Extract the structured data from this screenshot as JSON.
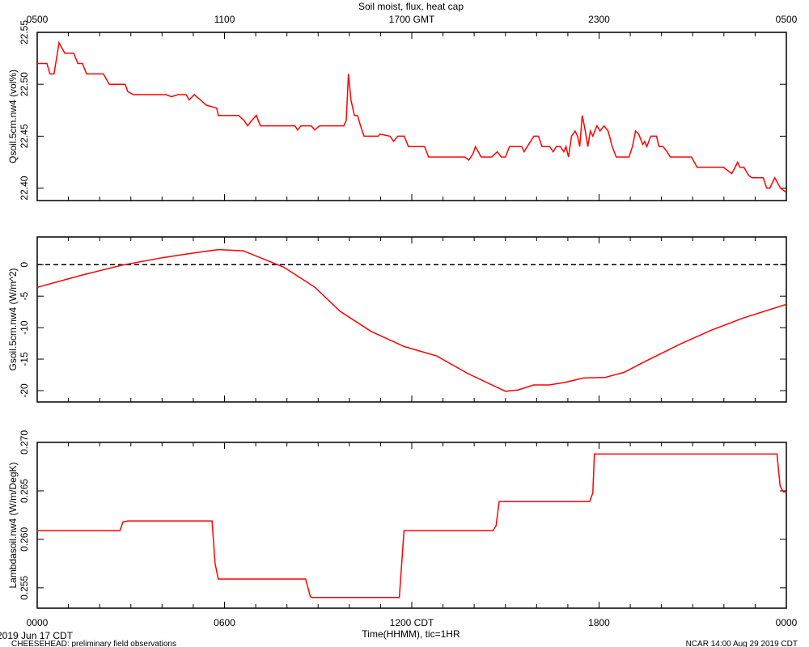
{
  "chart_data": [
    {
      "type": "line",
      "title": "Soil moist, flux, heat cap",
      "ylabel": "Qsoil.5cm.nw4 (vol%)",
      "color": "#ff0000",
      "xlim": [
        0,
        24
      ],
      "x2ticks": [
        {
          "value": 0,
          "label": "0500"
        },
        {
          "value": 6,
          "label": "1100"
        },
        {
          "value": 12,
          "label": "1700 GMT"
        },
        {
          "value": 18,
          "label": "2300"
        },
        {
          "value": 24,
          "label": "0500"
        }
      ],
      "ylim": [
        22.388,
        22.55
      ],
      "yticks": [
        {
          "value": 22.4,
          "label": "22.40"
        },
        {
          "value": 22.45,
          "label": "22.45"
        },
        {
          "value": 22.5,
          "label": "22.50"
        },
        22.55
      ],
      "x": [
        0,
        0.31,
        0.41,
        0.54,
        0.7,
        0.88,
        1.17,
        1.3,
        1.45,
        1.58,
        2.12,
        2.31,
        2.82,
        2.9,
        3.08,
        4.12,
        4.3,
        4.51,
        4.77,
        4.87,
        5.03,
        5.23,
        5.41,
        5.75,
        5.8,
        6.45,
        6.63,
        6.74,
        6.87,
        7.02,
        7.15,
        8.26,
        8.34,
        8.45,
        8.78,
        8.89,
        9.04,
        9.82,
        9.9,
        9.97,
        10.05,
        10.16,
        10.26,
        10.36,
        10.47,
        10.93,
        10.98,
        11.3,
        11.42,
        11.55,
        11.76,
        11.89,
        12.41,
        12.54,
        13.32,
        13.7,
        13.83,
        13.96,
        14.04,
        14.22,
        14.56,
        14.74,
        14.87,
        15.0,
        15.13,
        15.52,
        15.6,
        15.7,
        15.91,
        16.06,
        16.17,
        16.42,
        16.53,
        16.63,
        16.76,
        16.87,
        16.94,
        17.02,
        17.12,
        17.23,
        17.31,
        17.38,
        17.46,
        17.56,
        17.64,
        17.72,
        17.8,
        17.93,
        18.03,
        18.16,
        18.29,
        18.42,
        18.55,
        18.96,
        19.07,
        19.17,
        19.27,
        19.4,
        19.46,
        19.53,
        19.66,
        19.84,
        19.92,
        20.05,
        20.18,
        20.28,
        20.44,
        20.96,
        21.14,
        21.99,
        22.12,
        22.25,
        22.36,
        22.44,
        22.51,
        22.64,
        22.8,
        22.9,
        23.26,
        23.37,
        23.47,
        23.63,
        23.81,
        23.99
      ],
      "values": [
        22.52,
        22.52,
        22.51,
        22.51,
        22.54,
        22.53,
        22.53,
        22.52,
        22.52,
        22.51,
        22.51,
        22.5,
        22.5,
        22.493,
        22.49,
        22.49,
        22.488,
        22.49,
        22.49,
        22.485,
        22.49,
        22.485,
        22.48,
        22.477,
        22.47,
        22.47,
        22.465,
        22.46,
        22.465,
        22.47,
        22.46,
        22.46,
        22.456,
        22.46,
        22.46,
        22.456,
        22.46,
        22.46,
        22.465,
        22.51,
        22.485,
        22.47,
        22.47,
        22.46,
        22.45,
        22.45,
        22.452,
        22.45,
        22.445,
        22.45,
        22.45,
        22.44,
        22.44,
        22.43,
        22.43,
        22.43,
        22.427,
        22.433,
        22.44,
        22.43,
        22.43,
        22.435,
        22.43,
        22.43,
        22.44,
        22.44,
        22.435,
        22.44,
        22.45,
        22.45,
        22.44,
        22.44,
        22.435,
        22.44,
        22.44,
        22.435,
        22.44,
        22.43,
        22.45,
        22.455,
        22.45,
        22.44,
        22.47,
        22.455,
        22.44,
        22.455,
        22.45,
        22.46,
        22.455,
        22.46,
        22.455,
        22.44,
        22.43,
        22.43,
        22.44,
        22.455,
        22.452,
        22.442,
        22.445,
        22.44,
        22.45,
        22.45,
        22.44,
        22.44,
        22.435,
        22.43,
        22.43,
        22.43,
        22.42,
        22.42,
        22.417,
        22.414,
        22.42,
        22.425,
        22.42,
        22.42,
        22.412,
        22.41,
        22.41,
        22.4,
        22.4,
        22.41,
        22.4,
        22.396
      ]
    },
    {
      "type": "line",
      "ylabel": "Gsoil.5cm.nw4 (W/m^2)",
      "color": "#ff0000",
      "reference_line": 0,
      "xlim": [
        0,
        24
      ],
      "ylim": [
        -21.8,
        4.4
      ],
      "yticks": [
        -20,
        -15,
        -10,
        -5,
        0
      ],
      "x": [
        0,
        1.4,
        2.7,
        4.0,
        4.8,
        5.8,
        6.6,
        7.9,
        8.9,
        9.7,
        10.7,
        11.76,
        12.8,
        13.8,
        15.0,
        15.4,
        15.9,
        16.4,
        16.9,
        17.5,
        18.2,
        18.8,
        19.5,
        20.6,
        21.6,
        22.6,
        24
      ],
      "values": [
        -3.6,
        -1.7,
        -0.1,
        1.1,
        1.7,
        2.4,
        2.2,
        -0.4,
        -3.6,
        -7.4,
        -10.6,
        -13.0,
        -14.5,
        -17.3,
        -20.1,
        -19.9,
        -19.1,
        -19.1,
        -18.7,
        -18.0,
        -17.9,
        -17.1,
        -15.3,
        -12.6,
        -10.4,
        -8.5,
        -6.3
      ]
    },
    {
      "type": "line",
      "ylabel": "Lambdasoil.nw4 (W/m/DegK)",
      "color": "#ff0000",
      "xlim": [
        0,
        24
      ],
      "ylim": [
        0.2529,
        0.27
      ],
      "yticks": [
        0.255,
        {
          "value": 0.26,
          "label": "0.260"
        },
        0.265,
        {
          "value": 0.27,
          "label": "0.270"
        }
      ],
      "xticks": [
        {
          "value": 0,
          "label": "0000"
        },
        {
          "value": 6,
          "label": "0600"
        },
        {
          "value": 12,
          "label": "1200 CDT"
        },
        {
          "value": 18,
          "label": "1800"
        },
        {
          "value": 24,
          "label": "0000"
        }
      ],
      "xlabel": "Time(HHMM), tic=1HR",
      "date_label": "2019 Jun 17 CDT",
      "x": [
        0,
        2.65,
        2.75,
        2.9,
        5.6,
        5.7,
        5.8,
        8.6,
        8.75,
        8.8,
        11.6,
        11.75,
        14.6,
        14.7,
        14.8,
        17.7,
        17.8,
        17.85,
        23.7,
        23.8,
        23.9,
        24
      ],
      "values": [
        0.2609,
        0.2609,
        0.2618,
        0.2619,
        0.2619,
        0.2575,
        0.2559,
        0.2559,
        0.2541,
        0.254,
        0.254,
        0.2609,
        0.2609,
        0.2614,
        0.2639,
        0.2639,
        0.2648,
        0.2688,
        0.2688,
        0.2655,
        0.2649,
        0.2649
      ]
    }
  ],
  "footer": {
    "left": "CHEESEHEAD: preliminary field observations",
    "right": "NCAR 14:00 Aug 29 2019 CDT"
  }
}
